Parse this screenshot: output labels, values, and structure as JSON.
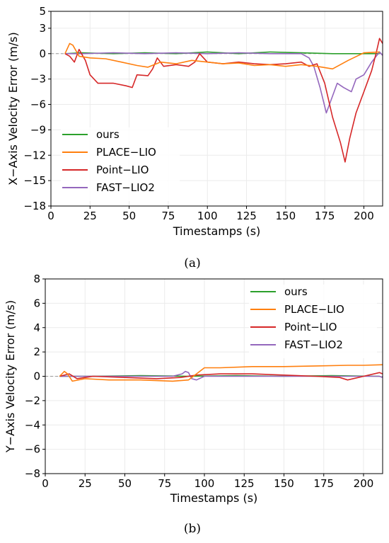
{
  "chart_data": [
    {
      "type": "line",
      "caption": "(a)",
      "xlabel": "Timestamps (s)",
      "ylabel": "X−Axis Velocity Error (m/s)",
      "xlim": [
        0,
        212
      ],
      "ylim": [
        -18,
        5
      ],
      "xticks": [
        0,
        25,
        50,
        75,
        100,
        125,
        150,
        175,
        200
      ],
      "yticks": [
        5,
        3,
        0,
        -3,
        -6,
        -9,
        -12,
        -15,
        -18
      ],
      "grid": true,
      "legend_position": "lower-left",
      "series": [
        {
          "name": "ours",
          "color": "#2ca02c",
          "x": [
            9,
            20,
            40,
            60,
            80,
            100,
            120,
            140,
            160,
            180,
            200,
            210
          ],
          "y": [
            0.0,
            0.1,
            0.0,
            0.1,
            0.0,
            0.2,
            0.0,
            0.2,
            0.1,
            0.0,
            0.0,
            0.0
          ]
        },
        {
          "name": "PLACE−LIO",
          "color": "#ff7f0e",
          "x": [
            9,
            12,
            14,
            18,
            25,
            35,
            45,
            55,
            62,
            70,
            80,
            90,
            100,
            110,
            120,
            130,
            140,
            150,
            160,
            170,
            180,
            190,
            200,
            210
          ],
          "y": [
            0.0,
            1.2,
            1.0,
            -0.3,
            -0.5,
            -0.6,
            -1.0,
            -1.4,
            -1.6,
            -1.0,
            -1.2,
            -0.8,
            -1.0,
            -1.2,
            -1.1,
            -1.4,
            -1.3,
            -1.5,
            -1.3,
            -1.5,
            -1.8,
            -0.8,
            0.1,
            0.2
          ]
        },
        {
          "name": "Point−LIO",
          "color": "#d62728",
          "x": [
            9,
            12,
            15,
            18,
            22,
            25,
            30,
            40,
            48,
            52,
            55,
            62,
            65,
            68,
            72,
            80,
            88,
            92,
            95,
            100,
            110,
            120,
            130,
            140,
            150,
            160,
            165,
            170,
            175,
            180,
            185,
            188,
            191,
            195,
            200,
            205,
            208,
            210,
            212
          ],
          "y": [
            0.0,
            -0.3,
            -1.0,
            0.5,
            -0.8,
            -2.5,
            -3.5,
            -3.5,
            -3.8,
            -4.0,
            -2.5,
            -2.6,
            -1.8,
            -0.5,
            -1.5,
            -1.3,
            -1.5,
            -1.0,
            0.0,
            -1.0,
            -1.2,
            -1.0,
            -1.2,
            -1.3,
            -1.2,
            -1.0,
            -1.5,
            -1.2,
            -3.5,
            -7.5,
            -10.5,
            -12.8,
            -10.0,
            -7.0,
            -4.5,
            -2.0,
            0.2,
            1.8,
            1.2
          ]
        },
        {
          "name": "FAST−LIO2",
          "color": "#9467bd",
          "x": [
            9,
            20,
            40,
            60,
            80,
            100,
            120,
            140,
            160,
            165,
            168,
            172,
            176,
            180,
            183,
            187,
            192,
            195,
            200,
            205,
            210,
            212
          ],
          "y": [
            0.0,
            0.0,
            0.1,
            0.0,
            0.1,
            0.0,
            0.1,
            0.0,
            0.0,
            -0.5,
            -1.5,
            -4.0,
            -7.0,
            -5.0,
            -3.5,
            -4.0,
            -4.5,
            -3.0,
            -2.5,
            -1.0,
            0.2,
            -0.2
          ]
        }
      ]
    },
    {
      "type": "line",
      "caption": "(b)",
      "xlabel": "Timestamps (s)",
      "ylabel": "Y−Axis Velocity Error (m/s)",
      "xlim": [
        0,
        212
      ],
      "ylim": [
        -8,
        8
      ],
      "xticks": [
        0,
        25,
        50,
        75,
        100,
        125,
        150,
        175,
        200
      ],
      "yticks": [
        8,
        6,
        4,
        2,
        0,
        -2,
        -4,
        -6,
        -8
      ],
      "grid": true,
      "legend_position": "upper-right",
      "series": [
        {
          "name": "ours",
          "color": "#2ca02c",
          "x": [
            9,
            30,
            60,
            90,
            120,
            150,
            180,
            210
          ],
          "y": [
            0.0,
            0.0,
            0.05,
            0.0,
            0.05,
            0.0,
            0.05,
            0.0
          ]
        },
        {
          "name": "PLACE−LIO",
          "color": "#ff7f0e",
          "x": [
            9,
            12,
            14,
            17,
            25,
            40,
            60,
            80,
            90,
            95,
            100,
            110,
            130,
            150,
            170,
            190,
            200,
            212
          ],
          "y": [
            0.0,
            0.4,
            0.2,
            -0.4,
            -0.2,
            -0.3,
            -0.3,
            -0.4,
            -0.3,
            0.2,
            0.7,
            0.7,
            0.8,
            0.8,
            0.85,
            0.9,
            0.9,
            0.95
          ]
        },
        {
          "name": "Point−LIO",
          "color": "#d62728",
          "x": [
            9,
            15,
            20,
            30,
            50,
            70,
            85,
            95,
            110,
            130,
            150,
            170,
            185,
            190,
            200,
            210,
            212
          ],
          "y": [
            0.0,
            0.2,
            -0.2,
            0.0,
            -0.1,
            -0.2,
            -0.1,
            0.1,
            0.2,
            0.2,
            0.1,
            0.0,
            -0.1,
            -0.3,
            0.0,
            0.3,
            0.2
          ]
        },
        {
          "name": "FAST−LIO2",
          "color": "#9467bd",
          "x": [
            9,
            40,
            80,
            86,
            88,
            90,
            92,
            95,
            100,
            130,
            160,
            190,
            210,
            212
          ],
          "y": [
            0.0,
            0.0,
            0.0,
            0.2,
            0.4,
            0.3,
            -0.2,
            -0.3,
            0.0,
            0.0,
            0.0,
            0.0,
            0.0,
            -0.1
          ]
        }
      ]
    }
  ]
}
